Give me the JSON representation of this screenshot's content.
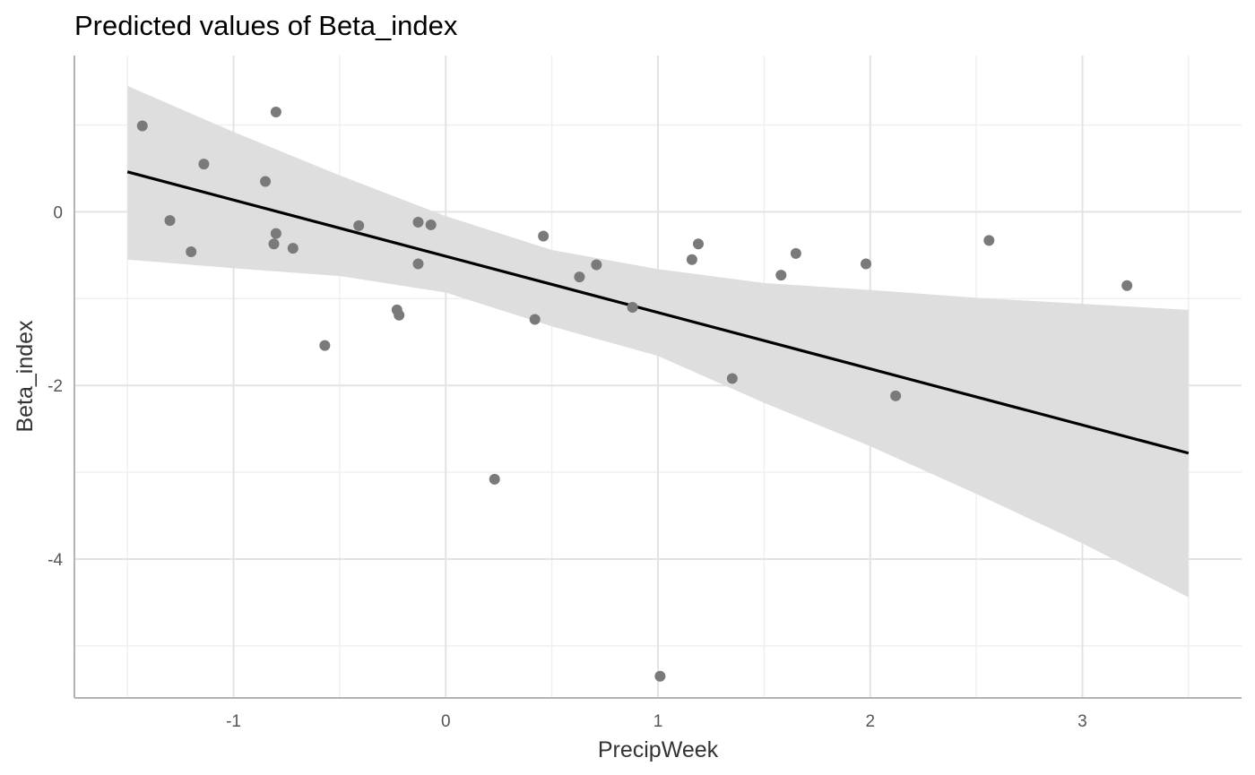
{
  "chart_data": {
    "type": "scatter",
    "title": "Predicted values of Beta_index",
    "xlabel": "PrecipWeek",
    "ylabel": "Beta_index",
    "xlim": [
      -1.75,
      3.75
    ],
    "ylim": [
      -5.6,
      1.8
    ],
    "x_ticks": [
      -1,
      0,
      1,
      2,
      3
    ],
    "x_tick_labels": [
      "-1",
      "0",
      "1",
      "2",
      "3"
    ],
    "y_ticks": [
      0,
      -2,
      -4
    ],
    "y_tick_labels": [
      "0",
      "-2",
      "-4"
    ],
    "grid": true,
    "legend": "none",
    "colors": {
      "points": "#7a7a7a",
      "fit_line": "#000000",
      "ci_band": "#dedede"
    },
    "points": [
      {
        "x": -1.43,
        "y": 0.99
      },
      {
        "x": -1.3,
        "y": -0.1
      },
      {
        "x": -1.2,
        "y": -0.46
      },
      {
        "x": -1.14,
        "y": 0.55
      },
      {
        "x": -0.85,
        "y": 0.35
      },
      {
        "x": -0.8,
        "y": 1.15
      },
      {
        "x": -0.8,
        "y": -0.25
      },
      {
        "x": -0.81,
        "y": -0.37
      },
      {
        "x": -0.72,
        "y": -0.42
      },
      {
        "x": -0.57,
        "y": -1.54
      },
      {
        "x": -0.41,
        "y": -0.16
      },
      {
        "x": -0.23,
        "y": -1.13
      },
      {
        "x": -0.22,
        "y": -1.19
      },
      {
        "x": -0.13,
        "y": -0.12
      },
      {
        "x": -0.13,
        "y": -0.6
      },
      {
        "x": -0.07,
        "y": -0.15
      },
      {
        "x": 0.23,
        "y": -3.08
      },
      {
        "x": 0.42,
        "y": -1.24
      },
      {
        "x": 0.46,
        "y": -0.28
      },
      {
        "x": 0.63,
        "y": -0.75
      },
      {
        "x": 0.71,
        "y": -0.61
      },
      {
        "x": 0.88,
        "y": -1.1
      },
      {
        "x": 1.01,
        "y": -5.35
      },
      {
        "x": 1.16,
        "y": -0.55
      },
      {
        "x": 1.19,
        "y": -0.37
      },
      {
        "x": 1.35,
        "y": -1.92
      },
      {
        "x": 1.58,
        "y": -0.73
      },
      {
        "x": 1.65,
        "y": -0.48
      },
      {
        "x": 1.98,
        "y": -0.6
      },
      {
        "x": 2.12,
        "y": -2.12
      },
      {
        "x": 2.56,
        "y": -0.33
      },
      {
        "x": 3.21,
        "y": -0.85
      }
    ],
    "fit_line": [
      {
        "x": -1.5,
        "y": 0.46
      },
      {
        "x": 3.5,
        "y": -2.78
      }
    ],
    "ci_band": [
      {
        "x": -1.5,
        "lower": -0.55,
        "upper": 1.45
      },
      {
        "x": -1.0,
        "lower": -0.65,
        "upper": 0.92
      },
      {
        "x": -0.5,
        "lower": -0.74,
        "upper": 0.42
      },
      {
        "x": 0.0,
        "lower": -0.93,
        "upper": -0.05
      },
      {
        "x": 0.5,
        "lower": -1.32,
        "upper": -0.44
      },
      {
        "x": 1.0,
        "lower": -1.66,
        "upper": -0.66
      },
      {
        "x": 1.5,
        "lower": -2.2,
        "upper": -0.82
      },
      {
        "x": 2.0,
        "lower": -2.7,
        "upper": -0.9
      },
      {
        "x": 2.5,
        "lower": -3.25,
        "upper": -0.99
      },
      {
        "x": 3.0,
        "lower": -3.82,
        "upper": -1.06
      },
      {
        "x": 3.5,
        "lower": -4.44,
        "upper": -1.13
      }
    ]
  }
}
